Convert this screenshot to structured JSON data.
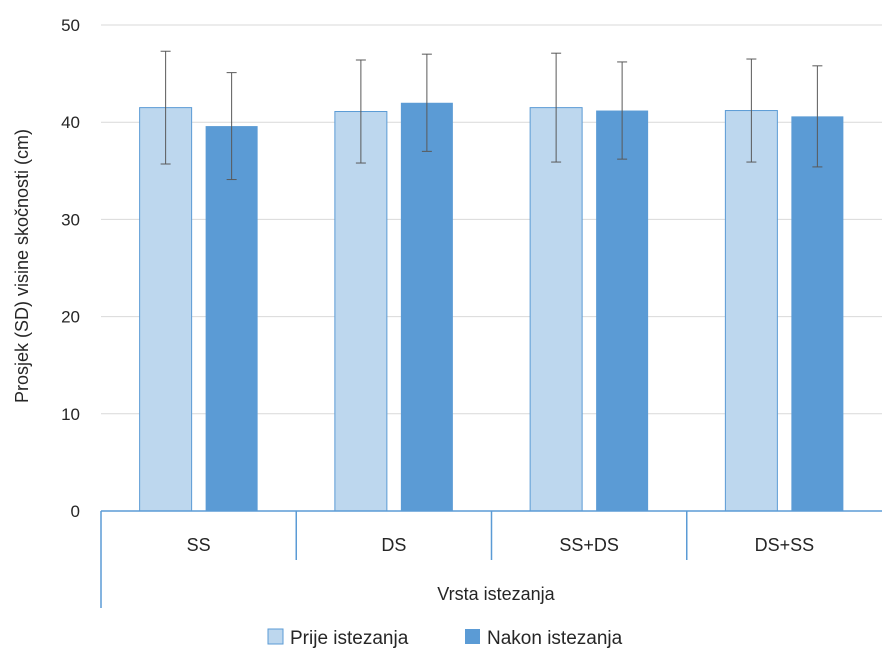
{
  "chart_data": {
    "type": "bar",
    "categories": [
      "SS",
      "DS",
      "SS+DS",
      "DS+SS"
    ],
    "series": [
      {
        "name": "Prije istezanja",
        "color": "#bdd7ee",
        "values": [
          41.5,
          41.1,
          41.5,
          41.2
        ],
        "error": [
          5.8,
          5.3,
          5.6,
          5.3
        ]
      },
      {
        "name": "Nakon istezanja",
        "color": "#5b9bd5",
        "values": [
          39.6,
          42.0,
          41.2,
          40.6
        ],
        "error": [
          5.5,
          5.0,
          5.0,
          5.2
        ]
      }
    ],
    "xlabel": "Vrsta istezanja",
    "ylabel": "Prosjek (SD) visine skočnosti (cm)",
    "ylim": [
      0,
      50
    ],
    "yticks": [
      "0",
      "10",
      "20",
      "30",
      "40",
      "50"
    ],
    "grid": true,
    "legend": "bottom"
  }
}
